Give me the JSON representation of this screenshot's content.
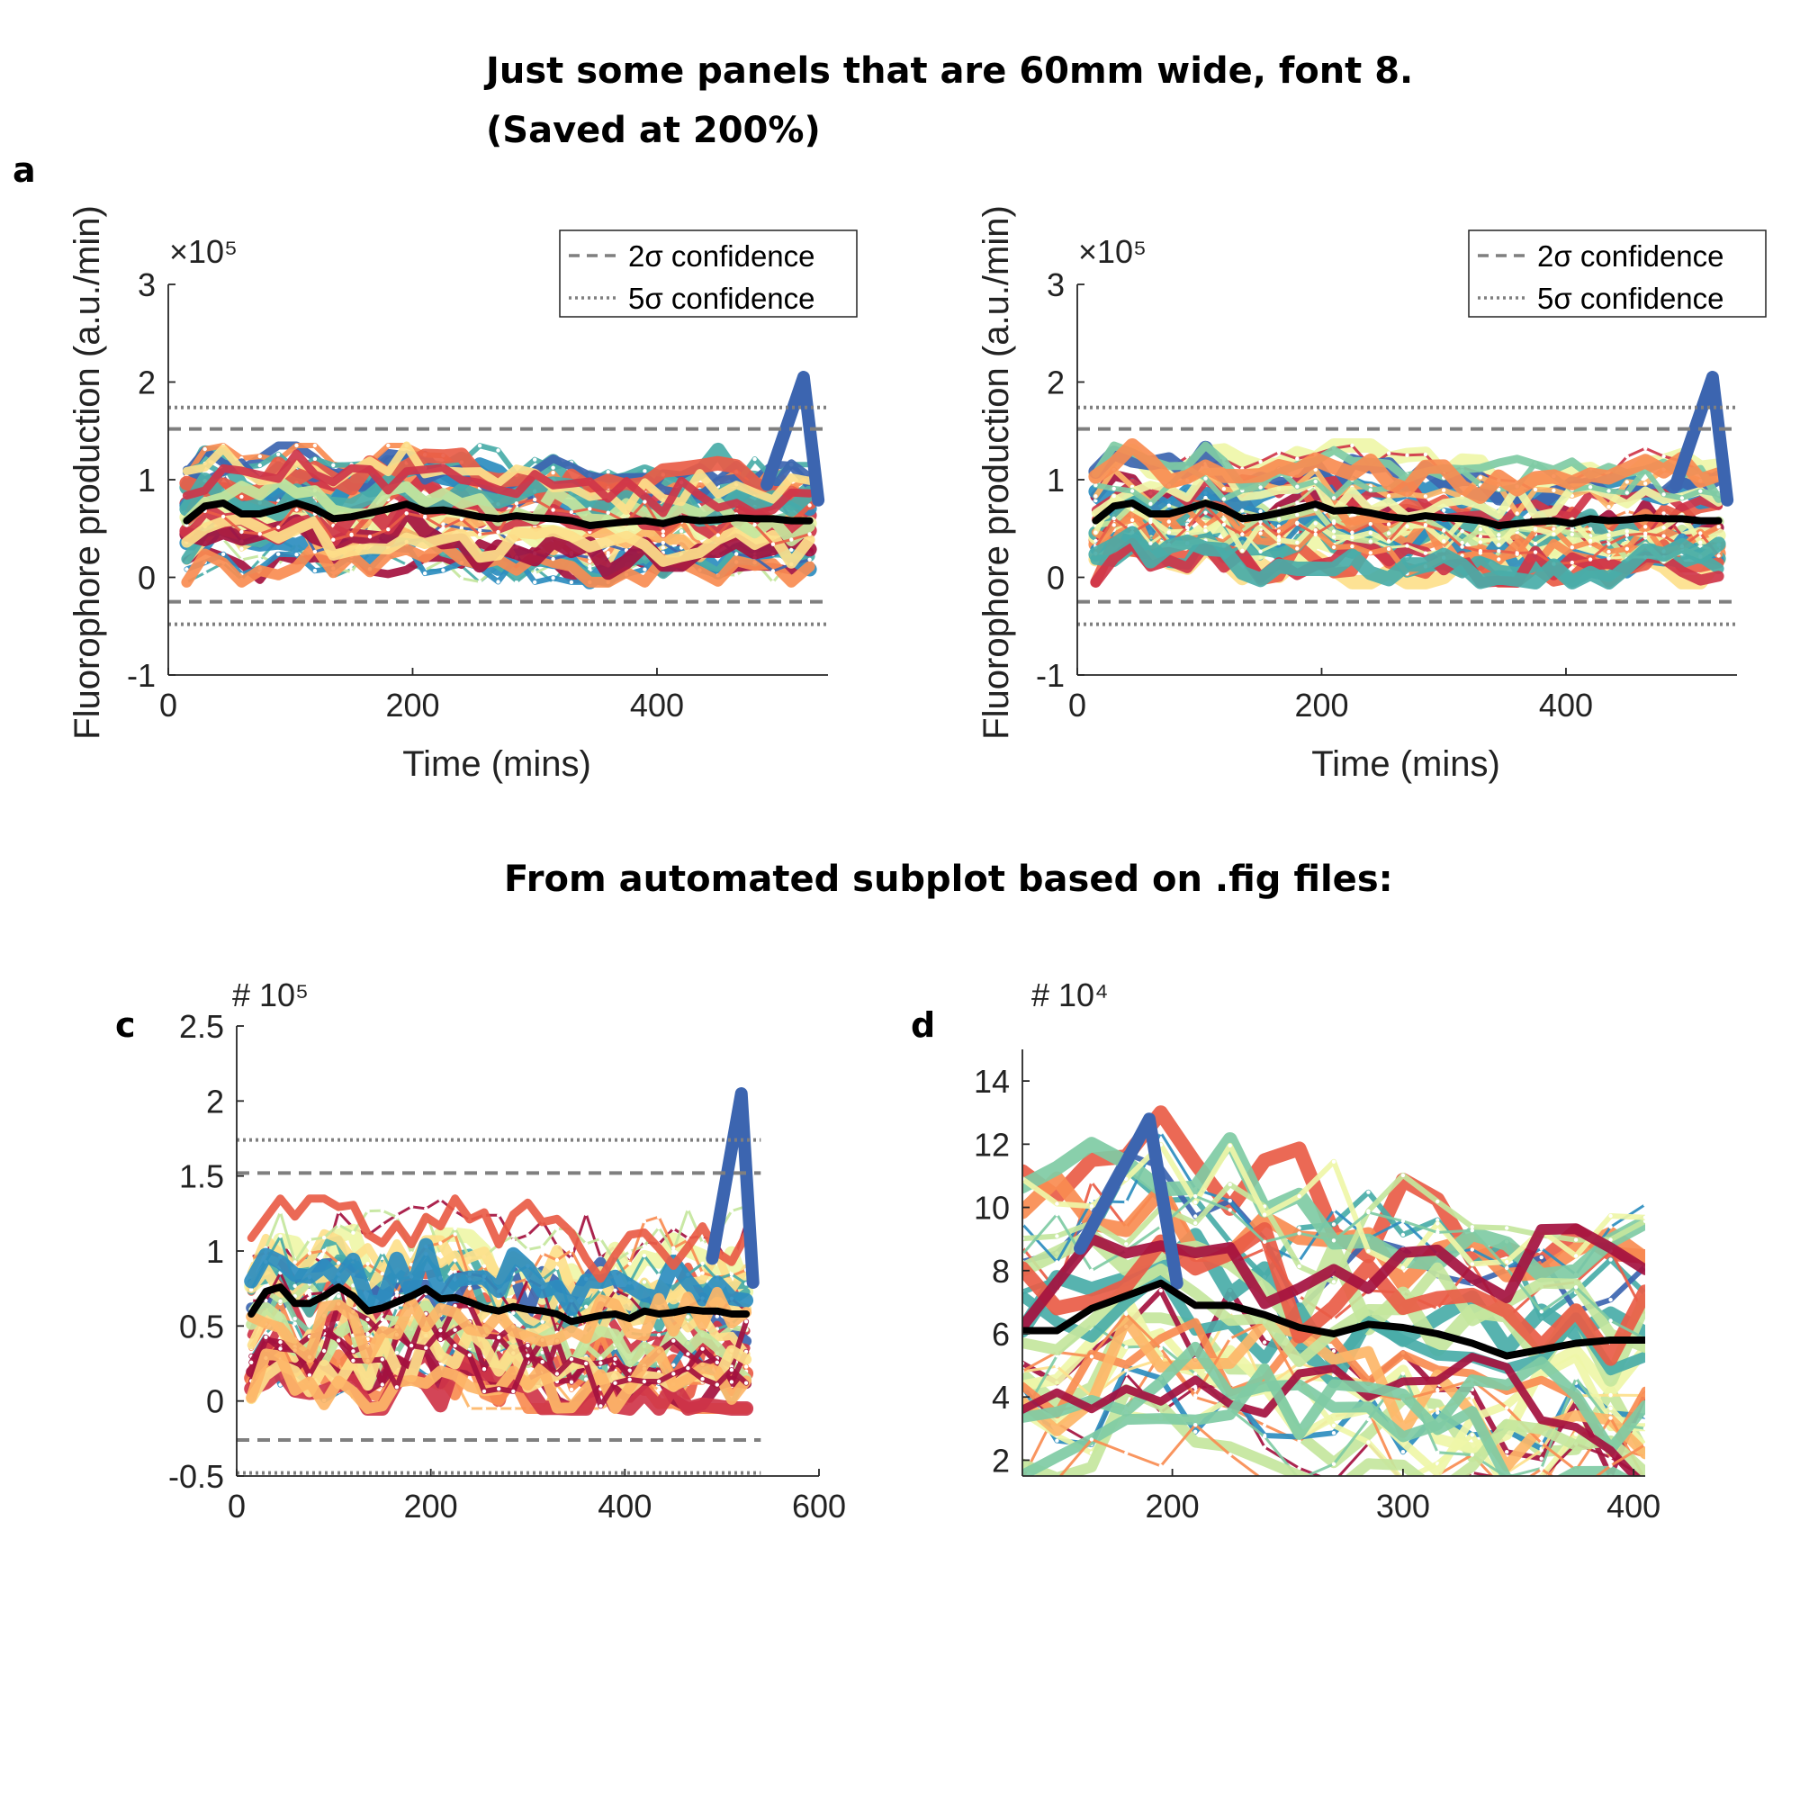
{
  "headings": {
    "line1": "Just some panels that are 60mm wide, font 8.",
    "line2": "(Saved at 200%)",
    "section2": "From automated subplot based on .fig files:"
  },
  "colors": {
    "mean_line": "#000000",
    "confidence_line": "#7f7f7f",
    "trace_palette": [
      "#3C65B0",
      "#2C8DBF",
      "#49ACA8",
      "#7FCBA4",
      "#C4E69D",
      "#EFF6A8",
      "#FDE08B",
      "#FDB668",
      "#F88C51",
      "#E95C47",
      "#CF3549",
      "#A4113F"
    ]
  },
  "chart_data": [
    {
      "panel_label": "a",
      "type": "line",
      "xlabel": "Time (mins)",
      "ylabel": "Fluorophore production (a.u./min)",
      "y_exponent_label": "×10⁵",
      "xlim": [
        0,
        540
      ],
      "ylim": [
        -1,
        3
      ],
      "xticks": [
        "0",
        "200",
        "400"
      ],
      "yticks": [
        "-1",
        "0",
        "1",
        "2",
        "3"
      ],
      "legend_position": "top-right",
      "legend": [
        {
          "label": "2σ confidence",
          "style": "dashed"
        },
        {
          "label": "5σ confidence",
          "style": "dotted"
        }
      ],
      "confidence_levels": {
        "sigma2": [
          -0.25,
          1.52
        ],
        "sigma5": [
          -0.48,
          1.74
        ]
      },
      "mean_series": {
        "x": [
          15,
          30,
          45,
          60,
          75,
          90,
          105,
          120,
          135,
          150,
          165,
          180,
          195,
          210,
          225,
          240,
          255,
          270,
          285,
          300,
          315,
          330,
          345,
          360,
          375,
          390,
          405,
          420,
          435,
          450,
          465,
          480,
          495,
          510,
          525
        ],
        "y": [
          0.58,
          0.73,
          0.76,
          0.65,
          0.65,
          0.7,
          0.76,
          0.7,
          0.6,
          0.62,
          0.66,
          0.7,
          0.75,
          0.68,
          0.69,
          0.66,
          0.62,
          0.6,
          0.63,
          0.61,
          0.6,
          0.58,
          0.53,
          0.55,
          0.57,
          0.58,
          0.55,
          0.6,
          0.58,
          0.59,
          0.61,
          0.6,
          0.6,
          0.58,
          0.58
        ]
      },
      "trace_envelope": {
        "low": -0.05,
        "high": 1.35
      },
      "trace_peak": {
        "x": 520,
        "y": 2.05
      }
    },
    {
      "panel_label": "",
      "type": "line",
      "xlabel": "Time (mins)",
      "ylabel": "Fluorophore production (a.u./min)",
      "y_exponent_label": "×10⁵",
      "xlim": [
        0,
        540
      ],
      "ylim": [
        -1,
        3
      ],
      "xticks": [
        "0",
        "200",
        "400"
      ],
      "yticks": [
        "-1",
        "0",
        "1",
        "2",
        "3"
      ],
      "legend_position": "top-right",
      "legend": [
        {
          "label": "2σ confidence",
          "style": "dashed"
        },
        {
          "label": "5σ confidence",
          "style": "dotted"
        }
      ],
      "confidence_levels": {
        "sigma2": [
          -0.25,
          1.52
        ],
        "sigma5": [
          -0.48,
          1.74
        ]
      },
      "mean_series": {
        "x": [
          15,
          30,
          45,
          60,
          75,
          90,
          105,
          120,
          135,
          150,
          165,
          180,
          195,
          210,
          225,
          240,
          255,
          270,
          285,
          300,
          315,
          330,
          345,
          360,
          375,
          390,
          405,
          420,
          435,
          450,
          465,
          480,
          495,
          510,
          525
        ],
        "y": [
          0.58,
          0.73,
          0.76,
          0.65,
          0.65,
          0.7,
          0.76,
          0.7,
          0.6,
          0.62,
          0.66,
          0.7,
          0.75,
          0.68,
          0.69,
          0.66,
          0.62,
          0.6,
          0.63,
          0.61,
          0.6,
          0.58,
          0.53,
          0.55,
          0.57,
          0.58,
          0.55,
          0.6,
          0.58,
          0.59,
          0.61,
          0.6,
          0.6,
          0.58,
          0.58
        ]
      },
      "trace_envelope": {
        "low": -0.05,
        "high": 1.35
      },
      "trace_peak": {
        "x": 520,
        "y": 2.05
      }
    },
    {
      "panel_label": "c",
      "type": "line",
      "xlabel": "",
      "ylabel": "",
      "y_exponent_label": "# 10⁵",
      "xlim": [
        0,
        600
      ],
      "ylim": [
        -0.5,
        2.5
      ],
      "xticks": [
        "0",
        "200",
        "400",
        "600"
      ],
      "yticks": [
        "-0.5",
        "0",
        "0.5",
        "1",
        "1.5",
        "2",
        "2.5"
      ],
      "confidence_levels": {
        "sigma2": [
          -0.26,
          1.52
        ],
        "sigma5": [
          -0.48,
          1.74
        ]
      },
      "mean_series": {
        "x": [
          15,
          30,
          45,
          60,
          75,
          90,
          105,
          120,
          135,
          150,
          165,
          180,
          195,
          210,
          225,
          240,
          255,
          270,
          285,
          300,
          315,
          330,
          345,
          360,
          375,
          390,
          405,
          420,
          435,
          450,
          465,
          480,
          495,
          510,
          525
        ],
        "y": [
          0.58,
          0.73,
          0.76,
          0.65,
          0.65,
          0.7,
          0.76,
          0.7,
          0.6,
          0.62,
          0.66,
          0.7,
          0.75,
          0.68,
          0.69,
          0.66,
          0.62,
          0.6,
          0.63,
          0.61,
          0.6,
          0.58,
          0.53,
          0.55,
          0.57,
          0.58,
          0.55,
          0.6,
          0.58,
          0.59,
          0.61,
          0.6,
          0.6,
          0.58,
          0.58
        ]
      },
      "trace_envelope": {
        "low": -0.05,
        "high": 1.35
      },
      "trace_peak": {
        "x": 520,
        "y": 2.05
      }
    },
    {
      "panel_label": "d",
      "type": "line",
      "xlabel": "",
      "ylabel": "",
      "y_exponent_label": "# 10⁴",
      "xlim": [
        135,
        405
      ],
      "ylim": [
        1.5,
        15
      ],
      "xticks": [
        "200",
        "300",
        "400"
      ],
      "yticks": [
        "2",
        "4",
        "6",
        "8",
        "10",
        "12",
        "14"
      ],
      "mean_series": {
        "x": [
          135,
          150,
          165,
          180,
          195,
          210,
          225,
          240,
          255,
          270,
          285,
          300,
          315,
          330,
          345,
          360,
          375,
          390,
          405
        ],
        "y": [
          6.1,
          6.1,
          6.8,
          7.2,
          7.6,
          6.9,
          6.9,
          6.6,
          6.2,
          6.0,
          6.3,
          6.2,
          6.0,
          5.7,
          5.3,
          5.5,
          5.7,
          5.8,
          5.8
        ]
      },
      "trace_envelope": {
        "low": 1.0,
        "high": 13.0
      },
      "trace_peak": {
        "x": 190,
        "y": 12.8
      }
    }
  ]
}
